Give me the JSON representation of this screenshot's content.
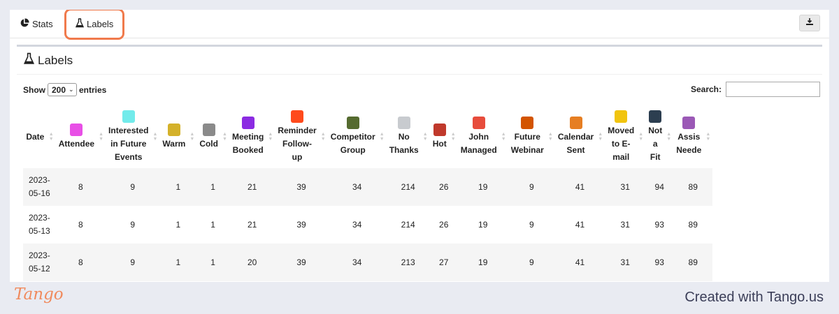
{
  "tabs": [
    {
      "label": "Stats",
      "icon": "pie-chart-icon"
    },
    {
      "label": "Labels",
      "icon": "flask-icon"
    }
  ],
  "panel": {
    "title": "Labels",
    "icon": "flask-icon"
  },
  "controls": {
    "show_label": "Show",
    "entries_value": "200",
    "entries_label": "entries",
    "search_label": "Search:",
    "search_value": ""
  },
  "table": {
    "columns": [
      {
        "lines": [
          "Date"
        ],
        "color": null
      },
      {
        "lines": [
          "Attendee"
        ],
        "color": "#e84fe6"
      },
      {
        "lines": [
          "Interested",
          "in Future",
          "Events"
        ],
        "color": "#72ebeb"
      },
      {
        "lines": [
          "Warm"
        ],
        "color": "#d4b12a"
      },
      {
        "lines": [
          "Cold"
        ],
        "color": "#8a8a8a"
      },
      {
        "lines": [
          "Meeting",
          "Booked"
        ],
        "color": "#8b2be2"
      },
      {
        "lines": [
          "Reminder",
          "Follow-",
          "up"
        ],
        "color": "#ff4a1c"
      },
      {
        "lines": [
          "Competitor",
          "Group"
        ],
        "color": "#556b2f"
      },
      {
        "lines": [
          "No",
          "Thanks"
        ],
        "color": "#c8cbcf"
      },
      {
        "lines": [
          "Hot"
        ],
        "color": "#c0392b"
      },
      {
        "lines": [
          "John",
          "Managed"
        ],
        "color": "#e74c3c"
      },
      {
        "lines": [
          "Future",
          "Webinar"
        ],
        "color": "#d35400"
      },
      {
        "lines": [
          "Calendar",
          "Sent"
        ],
        "color": "#e67e22"
      },
      {
        "lines": [
          "Moved",
          "to E-",
          "mail"
        ],
        "color": "#f1c40f"
      },
      {
        "lines": [
          "Not",
          "a",
          "Fit"
        ],
        "color": "#2c3e50"
      },
      {
        "lines": [
          "Assis",
          "Neede"
        ],
        "color": "#9b59b6"
      }
    ],
    "rows": [
      {
        "date": [
          "2023-",
          "05-16"
        ],
        "values": [
          "8",
          "9",
          "1",
          "1",
          "21",
          "39",
          "34",
          "214",
          "26",
          "19",
          "9",
          "41",
          "31",
          "94",
          "89"
        ]
      },
      {
        "date": [
          "2023-",
          "05-13"
        ],
        "values": [
          "8",
          "9",
          "1",
          "1",
          "21",
          "39",
          "34",
          "214",
          "26",
          "19",
          "9",
          "41",
          "31",
          "93",
          "89"
        ]
      },
      {
        "date": [
          "2023-",
          "05-12"
        ],
        "values": [
          "8",
          "9",
          "1",
          "1",
          "20",
          "39",
          "34",
          "213",
          "27",
          "19",
          "9",
          "41",
          "31",
          "93",
          "89"
        ]
      }
    ]
  },
  "footer": {
    "logo": "Tango",
    "created_text": "Created with Tango.us"
  }
}
